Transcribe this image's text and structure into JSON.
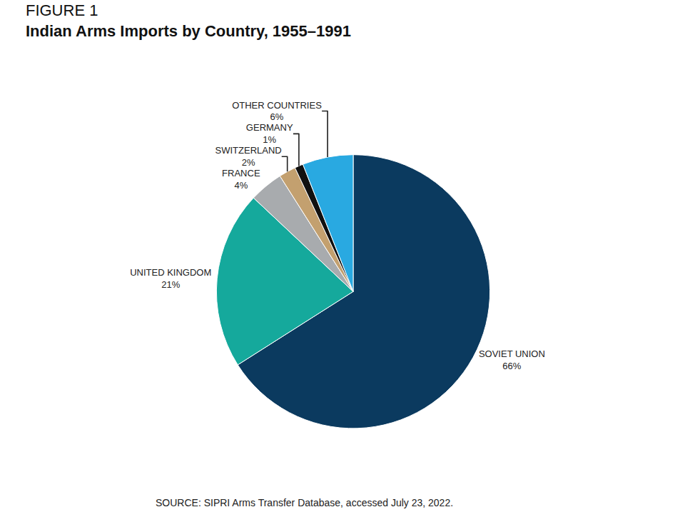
{
  "chart_data": {
    "type": "pie",
    "figure_label": "FIGURE 1",
    "title": "Indian Arms Imports by Country, 1955–1991",
    "categories": [
      "SOVIET UNION",
      "UNITED KINGDOM",
      "FRANCE",
      "SWITZERLAND",
      "GERMANY",
      "OTHER COUNTRIES"
    ],
    "values": [
      66,
      21,
      4,
      2,
      1,
      6
    ],
    "value_labels": [
      "66%",
      "21%",
      "4%",
      "2%",
      "1%",
      "6%"
    ],
    "colors": [
      "#0b3a5f",
      "#15a99c",
      "#a8abae",
      "#c3a06f",
      "#111111",
      "#29a9e1"
    ],
    "data_labels": true,
    "source": "SOURCE: SIPRI Arms Transfer Database, accessed July 23, 2022."
  }
}
